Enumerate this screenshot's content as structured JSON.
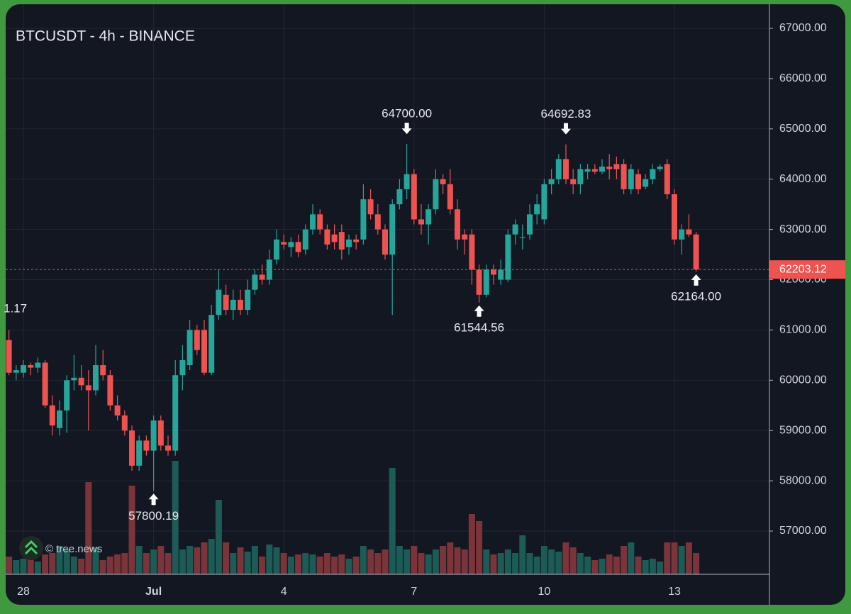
{
  "chart_data": {
    "type": "candlestick",
    "title": "BTCUSDT - 4h - BINANCE",
    "watermark": "© tree.news",
    "clipped_label": "1.17",
    "categories": [
      null,
      null,
      "28",
      null,
      null,
      null,
      null,
      null,
      null,
      null,
      null,
      null,
      null,
      null,
      null,
      null,
      null,
      null,
      null,
      null,
      "Jul",
      null,
      null,
      null,
      null,
      null,
      null,
      null,
      null,
      null,
      null,
      null,
      null,
      null,
      null,
      null,
      null,
      null,
      "4",
      null,
      null,
      null,
      null,
      null,
      null,
      null,
      null,
      null,
      null,
      null,
      null,
      null,
      null,
      null,
      null,
      null,
      "7",
      null,
      null,
      null,
      null,
      null,
      null,
      null,
      null,
      null,
      null,
      null,
      null,
      null,
      null,
      null,
      null,
      null,
      "10",
      null,
      null,
      null,
      null,
      null,
      null,
      null,
      null,
      null,
      null,
      null,
      null,
      null,
      null,
      null,
      null,
      null,
      "13",
      null,
      null,
      null
    ],
    "open": [
      60800,
      60150,
      60150,
      60300,
      60250,
      60350,
      59500,
      59050,
      59400,
      60000,
      60050,
      59900,
      59800,
      60300,
      60100,
      59500,
      59300,
      59000,
      58300,
      58800,
      58600,
      59200,
      58700,
      58600,
      60100,
      60300,
      61000,
      61000,
      60150,
      61300,
      61700,
      61400,
      61600,
      61400,
      61800,
      62100,
      62000,
      62400,
      62750,
      62650,
      62750,
      62600,
      63000,
      63300,
      63000,
      62900,
      62950,
      62650,
      62800,
      62800,
      63600,
      63300,
      63000,
      62500,
      63500,
      63800,
      64100,
      63200,
      63100,
      63400,
      64000,
      63900,
      63400,
      62900,
      62900,
      62200,
      61700,
      62200,
      62000,
      62000,
      62900,
      62850,
      62900,
      63300,
      63200,
      63900,
      64000,
      64400,
      64000,
      63900,
      64150,
      64200,
      64150,
      64250,
      64300,
      64300,
      63800,
      64100,
      63850,
      64000,
      64200,
      64300,
      63700,
      62800,
      63000,
      62900
    ],
    "high": [
      61000,
      60300,
      60400,
      60350,
      60450,
      60400,
      59700,
      59600,
      60100,
      60500,
      60300,
      60200,
      60700,
      60600,
      60200,
      59700,
      59400,
      59100,
      58900,
      58900,
      59300,
      59300,
      58900,
      60400,
      60700,
      61200,
      61100,
      61200,
      61500,
      62200,
      61900,
      61800,
      61800,
      62000,
      62200,
      62300,
      62600,
      63000,
      62900,
      62850,
      62900,
      63100,
      63500,
      63400,
      63100,
      63100,
      63100,
      62900,
      62900,
      63900,
      63800,
      63500,
      63100,
      63600,
      64000,
      64700,
      64200,
      63500,
      63500,
      64200,
      64100,
      64200,
      63600,
      63000,
      63000,
      62300,
      62300,
      62300,
      62400,
      63000,
      63200,
      63100,
      63500,
      63700,
      64000,
      64200,
      64500,
      64692.83,
      64200,
      64300,
      64300,
      64300,
      64400,
      64500,
      64450,
      64400,
      64300,
      64200,
      64100,
      64300,
      64300,
      64400,
      63800,
      63100,
      63300,
      62950
    ],
    "low": [
      60100,
      60000,
      60050,
      60100,
      60150,
      59450,
      58900,
      58900,
      58950,
      59800,
      59800,
      59000,
      59700,
      60000,
      59400,
      59200,
      58900,
      58200,
      58200,
      58500,
      57800.19,
      58600,
      58500,
      58500,
      59800,
      60200,
      60500,
      60100,
      60100,
      61200,
      61300,
      61200,
      61300,
      61300,
      61700,
      61900,
      61900,
      62300,
      62600,
      62450,
      62450,
      62500,
      62900,
      62900,
      62600,
      62600,
      62400,
      62500,
      62600,
      62700,
      63200,
      62900,
      62400,
      61300,
      63400,
      63600,
      63100,
      62900,
      62700,
      63300,
      63700,
      63300,
      62600,
      62500,
      61900,
      61544.56,
      61650,
      61900,
      61900,
      61950,
      62700,
      62600,
      62800,
      63100,
      63100,
      63700,
      63900,
      63900,
      63700,
      63700,
      64000,
      64100,
      64100,
      64000,
      64000,
      63700,
      63700,
      63700,
      63800,
      63900,
      64150,
      63600,
      62700,
      62500,
      62850,
      62164.0
    ],
    "close": [
      60150,
      60200,
      60300,
      60250,
      60350,
      59500,
      59100,
      59400,
      60000,
      60050,
      59900,
      59800,
      60300,
      60100,
      59500,
      59300,
      59000,
      58300,
      58800,
      58600,
      59200,
      58700,
      58600,
      60100,
      60400,
      61000,
      60600,
      60150,
      61300,
      61800,
      61400,
      61600,
      61400,
      61800,
      62100,
      62000,
      62400,
      62800,
      62700,
      62750,
      62550,
      63000,
      63300,
      63000,
      62700,
      62750,
      62600,
      62800,
      62750,
      63600,
      63300,
      63000,
      62500,
      63500,
      63800,
      64100,
      63200,
      63100,
      63400,
      64000,
      63900,
      63400,
      62800,
      62800,
      62200,
      61700,
      62200,
      62100,
      62200,
      62900,
      63100,
      62850,
      63300,
      63500,
      63900,
      64000,
      64400,
      64000,
      63900,
      64200,
      64200,
      64150,
      64250,
      64200,
      64200,
      63800,
      64200,
      63800,
      64000,
      64200,
      64250,
      63700,
      62800,
      63000,
      62900,
      62203.12
    ],
    "volume": [
      25,
      20,
      22,
      30,
      18,
      28,
      30,
      40,
      35,
      25,
      22,
      130,
      38,
      20,
      25,
      28,
      30,
      125,
      40,
      30,
      35,
      40,
      30,
      160,
      35,
      40,
      38,
      45,
      50,
      105,
      45,
      30,
      38,
      32,
      40,
      25,
      42,
      38,
      30,
      25,
      28,
      30,
      28,
      25,
      30,
      25,
      28,
      22,
      25,
      40,
      35,
      30,
      35,
      150,
      40,
      35,
      40,
      30,
      28,
      35,
      40,
      45,
      38,
      35,
      85,
      75,
      35,
      28,
      30,
      35,
      30,
      55,
      30,
      25,
      40,
      35,
      32,
      45,
      38,
      30,
      25,
      20,
      22,
      28,
      25,
      40,
      45,
      25,
      20,
      22,
      18,
      45,
      45,
      40,
      45,
      30
    ],
    "up_color": "#26a69a",
    "down_color": "#ef5350",
    "up_volume_color": "#1c5b56",
    "down_volume_color": "#7b3439",
    "ylim": [
      56140,
      67564
    ],
    "yticks": [
      {
        "value": 57000,
        "label": "57000.00"
      },
      {
        "value": 58000,
        "label": "58000.00"
      },
      {
        "value": 59000,
        "label": "59000.00"
      },
      {
        "value": 60000,
        "label": "60000.00"
      },
      {
        "value": 61000,
        "label": "61000.00"
      },
      {
        "value": 62000,
        "label": "62000.00"
      },
      {
        "value": 63000,
        "label": "63000.00"
      },
      {
        "value": 64000,
        "label": "64000.00"
      },
      {
        "value": 65000,
        "label": "65000.00"
      },
      {
        "value": 66000,
        "label": "66000.00"
      },
      {
        "value": 67000,
        "label": "67000.00"
      }
    ],
    "last_price": 62203.12,
    "annotations": [
      {
        "value": 64700,
        "label": "64700.00"
      },
      {
        "value": 64692.83,
        "label": "64692.83"
      },
      {
        "value": 61544.56,
        "label": "61544.56"
      },
      {
        "value": 57800.19,
        "label": "57800.19"
      },
      {
        "value": 62164.0,
        "label": "62164.00"
      }
    ],
    "grid": true
  }
}
